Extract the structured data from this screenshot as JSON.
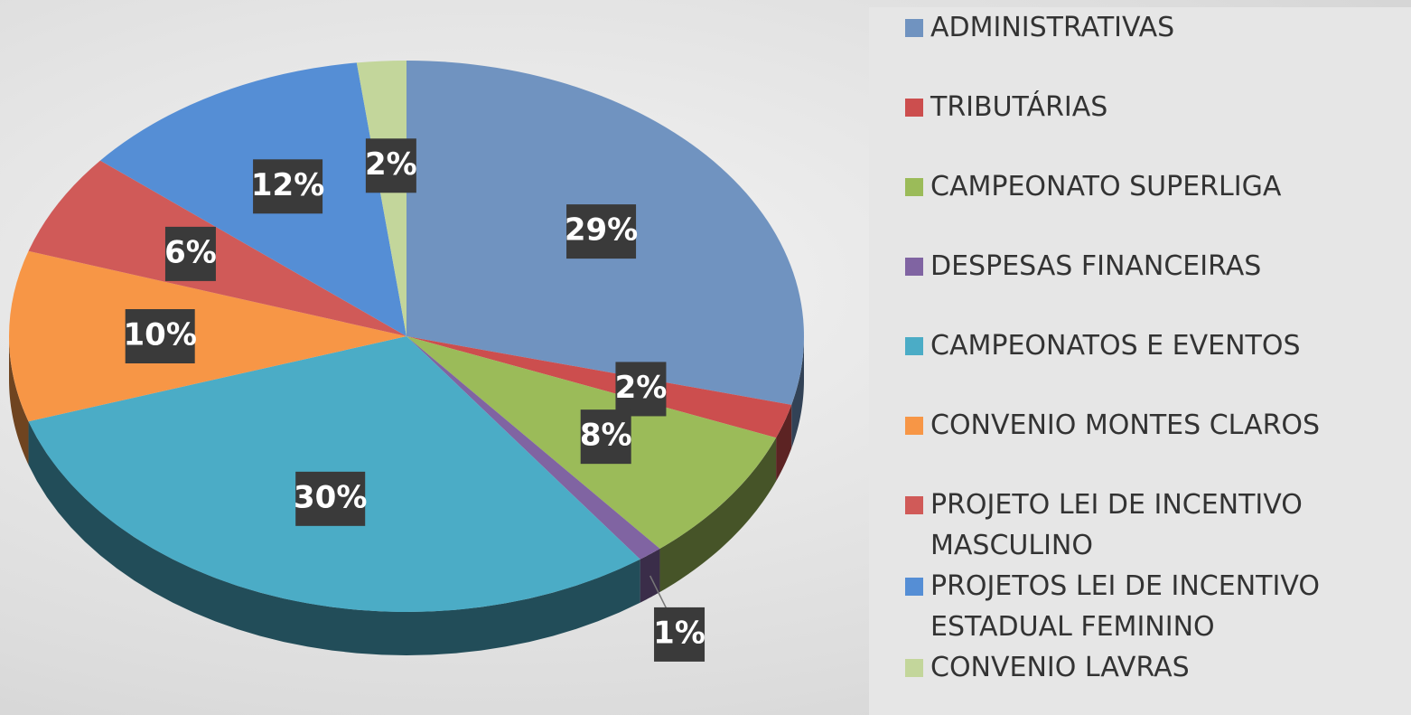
{
  "chart_data": {
    "type": "pie",
    "categories": [
      "ADMINISTRATIVAS",
      "TRIBUTÁRIAS",
      "CAMPEONATO SUPERLIGA",
      "DESPESAS FINANCEIRAS",
      "CAMPEONATOS E EVENTOS",
      "CONVENIO MONTES CLAROS",
      "PROJETO LEI DE INCENTIVO MASCULINO",
      "PROJETOS LEI DE INCENTIVO ESTADUAL FEMININO",
      "CONVENIO LAVRAS"
    ],
    "values": [
      29,
      2,
      8,
      1,
      30,
      10,
      6,
      12,
      2
    ],
    "value_labels": [
      "29%",
      "2%",
      "8%",
      "1%",
      "30%",
      "10%",
      "6%",
      "12%",
      "2%"
    ],
    "colors": [
      "#7093c0",
      "#cc4e4e",
      "#9bbb59",
      "#8064a2",
      "#4bacc6",
      "#f79646",
      "#d05a58",
      "#558ed5",
      "#c3d69b"
    ],
    "legend": "right"
  }
}
